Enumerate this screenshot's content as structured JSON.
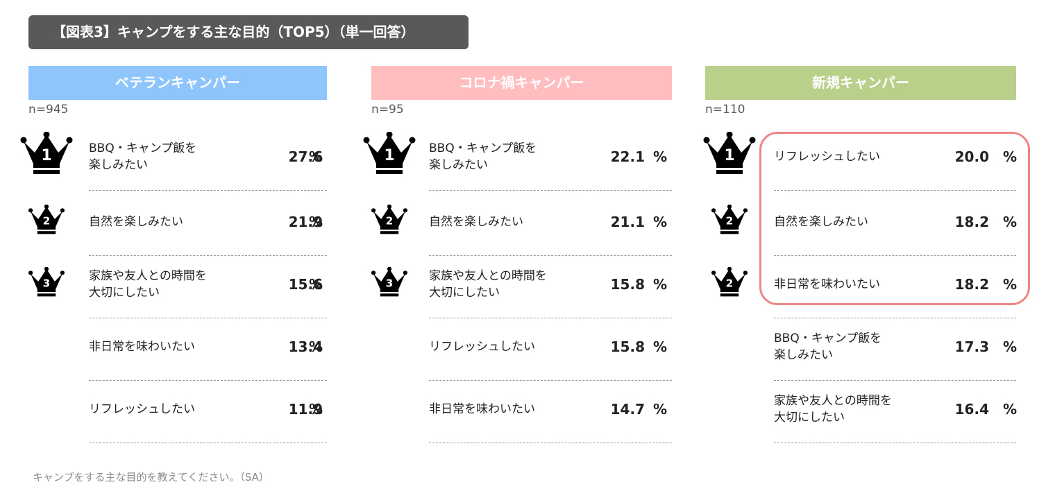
{
  "title": "【図表3】キャンプをする主な目的（TOP5）（単一回答）",
  "footnote": "キャンプをする主な目的を教えてください。（SA）",
  "unit": "%",
  "colors": {
    "veteran": "#8ec5fa",
    "corona": "#ffbdc0",
    "new": "#b8d08a",
    "highlight": "#ef8585"
  },
  "chart_data": [
    {
      "type": "table",
      "title": "ベテランキャンパー",
      "n": "n=945",
      "categories": [
        "BBQ・キャンプ飯を楽しみたい",
        "自然を楽しみたい",
        "家族や友人との時間を大切にしたい",
        "非日常を味わいたい",
        "リフレッシュしたい"
      ],
      "values": [
        27.6,
        21.9,
        15.6,
        13.4,
        11.9
      ],
      "ranks": [
        "1",
        "2",
        "3",
        "",
        ""
      ]
    },
    {
      "type": "table",
      "title": "コロナ禍キャンパー",
      "n": "n=95",
      "categories": [
        "BBQ・キャンプ飯を楽しみたい",
        "自然を楽しみたい",
        "家族や友人との時間を大切にしたい",
        "リフレッシュしたい",
        "非日常を味わいたい"
      ],
      "values": [
        22.1,
        21.1,
        15.8,
        15.8,
        14.7
      ],
      "ranks": [
        "1",
        "2",
        "3",
        "",
        ""
      ]
    },
    {
      "type": "table",
      "title": "新規キャンパー",
      "n": "n=110",
      "categories": [
        "リフレッシュしたい",
        "自然を楽しみたい",
        "非日常を味わいたい",
        "BBQ・キャンプ飯を楽しみたい",
        "家族や友人との時間を大切にしたい"
      ],
      "values": [
        20.0,
        18.2,
        18.2,
        17.3,
        16.4
      ],
      "ranks": [
        "1",
        "2",
        "2",
        "",
        ""
      ]
    }
  ]
}
